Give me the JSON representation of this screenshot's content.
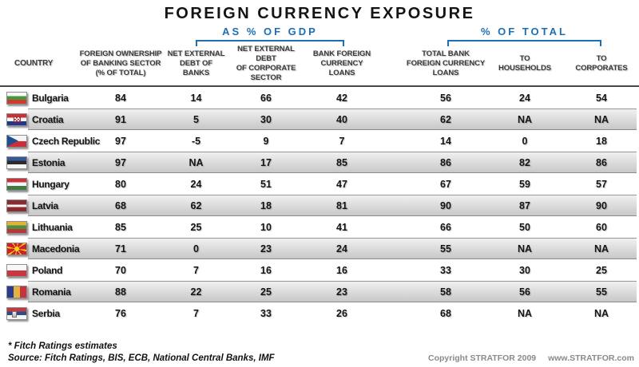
{
  "title": "FOREIGN CURRENCY EXPOSURE",
  "accent_color": "#1c6fb4",
  "chart_data": {
    "type": "table",
    "title": "FOREIGN CURRENCY EXPOSURE",
    "group_headers": [
      "AS % OF GDP",
      "% OF TOTAL"
    ],
    "group_spans": {
      "as_pct_of_gdp_columns": [
        "NET EXTERNAL DEBT OF BANKS",
        "NET EXTERNAL DEBT OF CORPORATE SECTOR",
        "BANK FOREIGN CURRENCY LOANS"
      ],
      "pct_of_total_columns": [
        "TOTAL BANK FOREIGN CURRENCY LOANS",
        "TO HOUSEHOLDS",
        "TO CORPORATES"
      ]
    },
    "columns": {
      "country": "COUNTRY",
      "foreign_ownership": "FOREIGN OWNERSHIP\nOF BANKING SECTOR\n(% OF TOTAL)",
      "net_ext_debt_banks": "NET EXTERNAL\nDEBT OF\nBANKS",
      "net_ext_debt_corporate": "NET EXTERNAL DEBT\nOF CORPORATE\nSECTOR",
      "bank_fc_loans": "BANK FOREIGN\nCURRENCY\nLOANS",
      "total_bank_fc_loans": "TOTAL BANK\nFOREIGN CURRENCY\nLOANS",
      "to_households": "TO\nHOUSEHOLDS",
      "to_corporates": "TO\nCORPORATES"
    },
    "rows": [
      {
        "country": "Bulgaria",
        "flag": "bulgaria",
        "values": [
          "84",
          "14",
          "66",
          "42",
          "56",
          "24",
          "54"
        ]
      },
      {
        "country": "Croatia",
        "flag": "croatia",
        "values": [
          "91",
          "5",
          "30",
          "40",
          "62",
          "NA",
          "NA"
        ]
      },
      {
        "country": "Czech Republic",
        "flag": "czech",
        "values": [
          "97",
          "-5",
          "9",
          "7",
          "14",
          "0",
          "18"
        ]
      },
      {
        "country": "Estonia",
        "flag": "estonia",
        "values": [
          "97",
          "NA",
          "17",
          "85",
          "86",
          "82",
          "86"
        ]
      },
      {
        "country": "Hungary",
        "flag": "hungary",
        "values": [
          "80",
          "24",
          "51",
          "47",
          "67",
          "59",
          "57"
        ]
      },
      {
        "country": "Latvia",
        "flag": "latvia",
        "values": [
          "68",
          "62",
          "18",
          "81",
          "90",
          "87",
          "90"
        ]
      },
      {
        "country": "Lithuania",
        "flag": "lithuania",
        "values": [
          "85",
          "25",
          "10",
          "41",
          "66",
          "50",
          "60"
        ]
      },
      {
        "country": "Macedonia",
        "flag": "macedonia",
        "values": [
          "71",
          "0",
          "23",
          "24",
          "55",
          "NA",
          "NA"
        ]
      },
      {
        "country": "Poland",
        "flag": "poland",
        "values": [
          "70",
          "7",
          "16",
          "16",
          "33",
          "30",
          "25"
        ]
      },
      {
        "country": "Romania",
        "flag": "romania",
        "values": [
          "88",
          "22",
          "25",
          "23",
          "58",
          "56",
          "55"
        ]
      },
      {
        "country": "Serbia",
        "flag": "serbia",
        "values": [
          "76",
          "7",
          "33",
          "26",
          "68",
          "NA",
          "NA"
        ]
      }
    ]
  },
  "footnotes": {
    "estimate_note": "* Fitch Ratings estimates",
    "source": "Source: Fitch Ratings, BIS, ECB, National Central Banks, IMF"
  },
  "footer": {
    "copyright": "Copyright STRATFOR 2009",
    "website": "www.STRATFOR.com"
  }
}
